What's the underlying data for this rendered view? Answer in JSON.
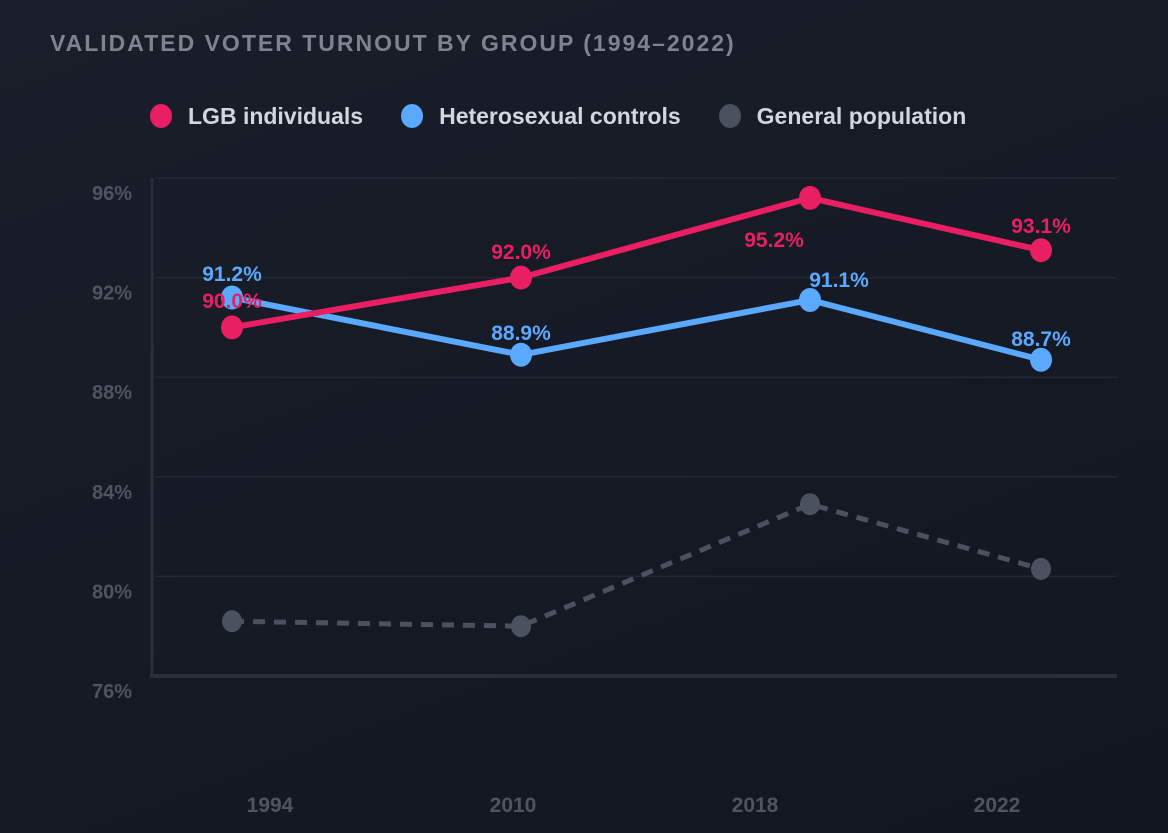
{
  "chart_data": {
    "type": "line",
    "title": "VALIDATED VOTER TURNOUT BY GROUP (1994–2022)",
    "xlabel": "",
    "ylabel": "",
    "categories": [
      "1994",
      "2010",
      "2018",
      "2022"
    ],
    "ylim": [
      76,
      96
    ],
    "yticks": [
      96,
      92,
      88,
      84,
      80,
      76
    ],
    "ytick_labels": [
      "96%",
      "92%",
      "88%",
      "84%",
      "80%",
      "76%"
    ],
    "grid": true,
    "legend_position": "top-left",
    "series": [
      {
        "name": "LGB individuals",
        "color": "#e91e63",
        "style": "solid",
        "values": [
          90.0,
          92.0,
          95.2,
          93.1
        ],
        "labels": [
          "90.0%",
          "92.0%",
          "95.2%",
          "93.1%"
        ]
      },
      {
        "name": "Heterosexual controls",
        "color": "#5aa9ff",
        "style": "solid",
        "values": [
          91.2,
          88.9,
          91.1,
          88.7
        ],
        "labels": [
          "91.2%",
          "88.9%",
          "91.1%",
          "88.7%"
        ]
      },
      {
        "name": "General population",
        "color": "#4b515e",
        "style": "dashed",
        "values": [
          78.2,
          78.0,
          82.9,
          80.3
        ],
        "labels": []
      }
    ]
  }
}
